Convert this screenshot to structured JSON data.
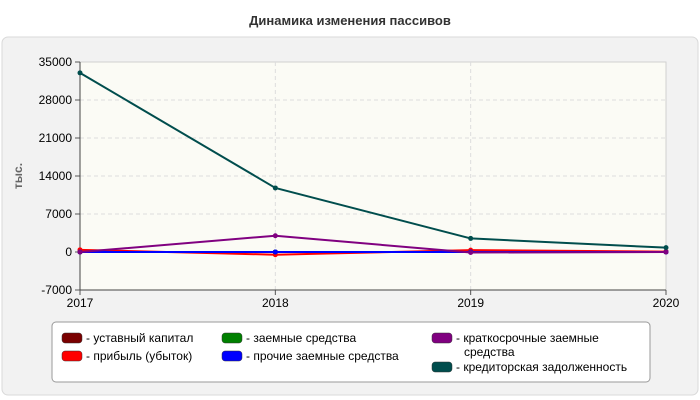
{
  "chart_data": {
    "type": "line",
    "title": "Динамика изменения пассивов",
    "xlabel": "",
    "ylabel": "тыс.",
    "x": [
      "2017",
      "2018",
      "2019",
      "2020"
    ],
    "ylim": [
      -7000,
      35000
    ],
    "yticks": [
      35000,
      28000,
      21000,
      14000,
      7000,
      0,
      -7000
    ],
    "grid": true,
    "legend_position": "bottom",
    "series": [
      {
        "name": "- уставный капитал",
        "color": "#7a0000",
        "values": [
          10,
          10,
          10,
          10
        ]
      },
      {
        "name": "- прибыль (убыток)",
        "color": "#ff0000",
        "values": [
          400,
          -500,
          350,
          80
        ]
      },
      {
        "name": "- заемные средства",
        "color": "#008000",
        "values": [
          0,
          0,
          0,
          0
        ]
      },
      {
        "name": "- прочие заемные средства",
        "color": "#0000ff",
        "values": [
          0,
          0,
          0,
          0
        ]
      },
      {
        "name": "- краткосрочные заемные средства",
        "color": "#800080",
        "values": [
          0,
          3000,
          -100,
          0
        ]
      },
      {
        "name": "- кредиторская задолженность",
        "color": "#004d4d",
        "values": [
          33000,
          11800,
          2500,
          800
        ]
      }
    ]
  }
}
